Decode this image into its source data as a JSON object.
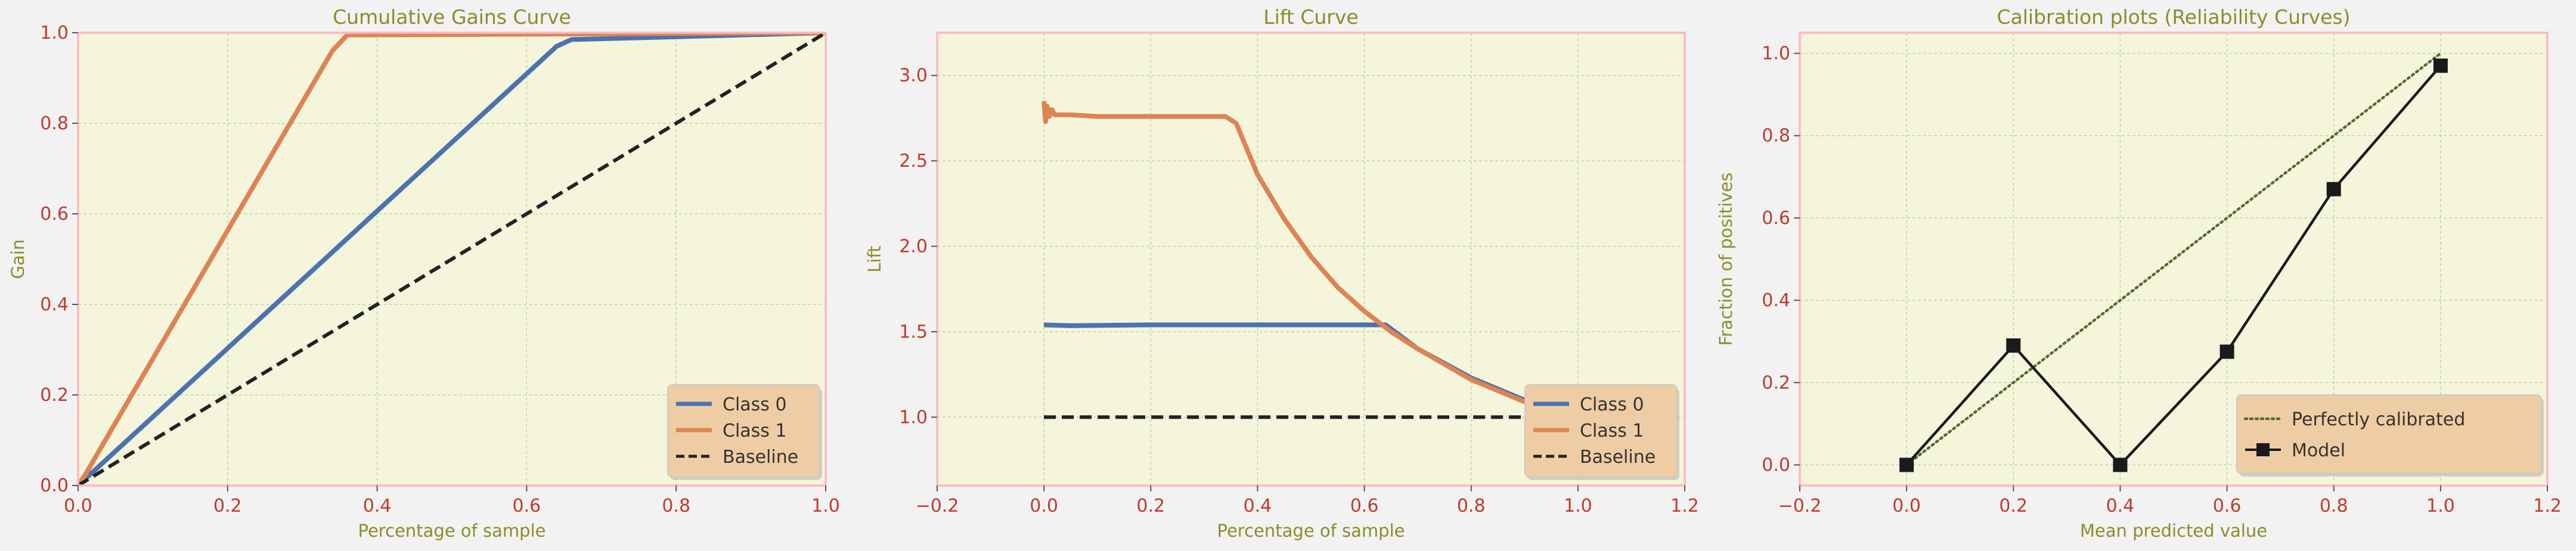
{
  "colors": {
    "figure_bg": "#f2f2f2",
    "axes_bg": "#f5f5dc",
    "spine": "#ffb6c1",
    "grid": "#b5d9a8",
    "title": "#8c8c2a",
    "tick_label": "#c0392b",
    "class0": "#4c72b0",
    "class1": "#dd8452",
    "baseline": "#222222",
    "legend_bg": "#efcda4",
    "legend_edge": "#c8c8c8",
    "model": "#1a1a1a",
    "perfect": "#556b2f"
  },
  "chart_data": [
    {
      "type": "line",
      "title": "Cumulative Gains Curve",
      "xlabel": "Percentage of sample",
      "ylabel": "Gain",
      "xlim": [
        0,
        1
      ],
      "ylim": [
        0,
        1
      ],
      "xticks": [
        0.0,
        0.2,
        0.4,
        0.6,
        0.8,
        1.0
      ],
      "yticks": [
        0.0,
        0.2,
        0.4,
        0.6,
        0.8,
        1.0
      ],
      "xtick_labels": [
        "0.0",
        "0.2",
        "0.4",
        "0.6",
        "0.8",
        "1.0"
      ],
      "ytick_labels": [
        "0.0",
        "0.2",
        "0.4",
        "0.6",
        "0.8",
        "1.0"
      ],
      "grid": true,
      "legend_position": "lower-right",
      "series": [
        {
          "name": "Class 0",
          "color_key": "class0",
          "style": "solid",
          "x": [
            0.0,
            0.01,
            0.64,
            0.66,
            1.0
          ],
          "y": [
            0.0,
            0.015,
            0.97,
            0.985,
            1.0
          ]
        },
        {
          "name": "Class 1",
          "color_key": "class1",
          "style": "solid",
          "x": [
            0.0,
            0.01,
            0.34,
            0.36,
            1.0
          ],
          "y": [
            0.0,
            0.025,
            0.96,
            0.995,
            1.0
          ]
        },
        {
          "name": "Baseline",
          "color_key": "baseline",
          "style": "dashed",
          "x": [
            0.0,
            1.0
          ],
          "y": [
            0.0,
            1.0
          ]
        }
      ]
    },
    {
      "type": "line",
      "title": "Lift Curve",
      "xlabel": "Percentage of sample",
      "ylabel": "Lift",
      "xlim": [
        -0.2,
        1.2
      ],
      "ylim": [
        0.6,
        3.25
      ],
      "xticks": [
        -0.2,
        0.0,
        0.2,
        0.4,
        0.6,
        0.8,
        1.0,
        1.2
      ],
      "yticks": [
        1.0,
        1.5,
        2.0,
        2.5,
        3.0
      ],
      "xtick_labels": [
        "−0.2",
        "0.0",
        "0.2",
        "0.4",
        "0.6",
        "0.8",
        "1.0",
        "1.2"
      ],
      "ytick_labels": [
        "1.0",
        "1.5",
        "2.0",
        "2.5",
        "3.0"
      ],
      "grid": true,
      "legend_position": "lower-right",
      "series": [
        {
          "name": "Class 0",
          "color_key": "class0",
          "style": "solid",
          "x": [
            0.0,
            0.05,
            0.2,
            0.4,
            0.6,
            0.64,
            0.7,
            0.8,
            0.9,
            1.0
          ],
          "y": [
            1.54,
            1.535,
            1.54,
            1.54,
            1.54,
            1.54,
            1.4,
            1.23,
            1.1,
            1.0
          ]
        },
        {
          "name": "Class 1",
          "color_key": "class1",
          "style": "solid",
          "x": [
            0.0,
            0.003,
            0.006,
            0.01,
            0.015,
            0.02,
            0.05,
            0.1,
            0.2,
            0.3,
            0.34,
            0.36,
            0.4,
            0.45,
            0.5,
            0.55,
            0.6,
            0.65,
            0.7,
            0.8,
            0.9,
            1.0
          ],
          "y": [
            2.85,
            2.73,
            2.82,
            2.76,
            2.8,
            2.77,
            2.77,
            2.76,
            2.76,
            2.76,
            2.76,
            2.72,
            2.42,
            2.16,
            1.94,
            1.76,
            1.62,
            1.5,
            1.4,
            1.22,
            1.09,
            1.0
          ]
        },
        {
          "name": "Baseline",
          "color_key": "baseline",
          "style": "dashed",
          "x": [
            0.0,
            1.0
          ],
          "y": [
            1.0,
            1.0
          ]
        }
      ]
    },
    {
      "type": "line",
      "title": "Calibration plots (Reliability Curves)",
      "xlabel": "Mean predicted value",
      "ylabel": "Fraction of positives",
      "xlim": [
        -0.2,
        1.2
      ],
      "ylim": [
        -0.05,
        1.05
      ],
      "xticks": [
        -0.2,
        0.0,
        0.2,
        0.4,
        0.6,
        0.8,
        1.0,
        1.2
      ],
      "yticks": [
        0.0,
        0.2,
        0.4,
        0.6,
        0.8,
        1.0
      ],
      "xtick_labels": [
        "−0.2",
        "0.0",
        "0.2",
        "0.4",
        "0.6",
        "0.8",
        "1.0",
        "1.2"
      ],
      "ytick_labels": [
        "0.0",
        "0.2",
        "0.4",
        "0.6",
        "0.8",
        "1.0"
      ],
      "grid": true,
      "legend_position": "lower-right",
      "series": [
        {
          "name": "Perfectly calibrated",
          "color_key": "perfect",
          "style": "dotted",
          "x": [
            0.0,
            1.0
          ],
          "y": [
            0.0,
            1.0
          ]
        },
        {
          "name": "Model",
          "color_key": "model",
          "style": "solid",
          "marker": "square",
          "x": [
            0.0,
            0.2,
            0.4,
            0.6,
            0.8,
            1.0
          ],
          "y": [
            0.0,
            0.29,
            0.0,
            0.275,
            0.67,
            0.97
          ]
        }
      ]
    }
  ]
}
